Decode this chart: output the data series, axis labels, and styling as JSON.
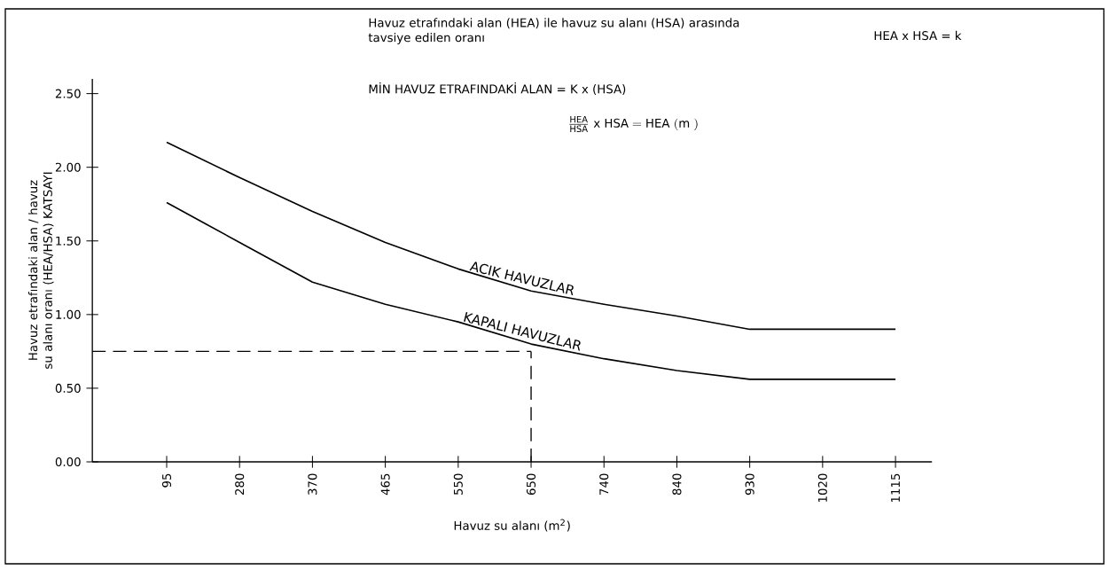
{
  "chart_data": {
    "type": "line",
    "categories": [
      "95",
      "280",
      "370",
      "465",
      "550",
      "650",
      "740",
      "840",
      "930",
      "1020",
      "1115"
    ],
    "xlabel": "Havuz su alanı (m$^{2}$)",
    "ylabel": "Havuz etrafındaki alan / havuz su alanı oranı (HEA/HSA) KATSAYI",
    "ylim": [
      0,
      2.6
    ],
    "yticks": [
      {
        "value": 0,
        "label": "0.00"
      },
      {
        "value": 0.5,
        "label": "0.50"
      },
      {
        "value": 1,
        "label": "1.00"
      },
      {
        "value": 1.5,
        "label": "1.50"
      },
      {
        "value": 2,
        "label": "2.00"
      },
      {
        "value": 2.5,
        "label": "2.50"
      }
    ],
    "series": [
      {
        "name": "ACIK HAVUZLAR",
        "color": "#000000",
        "values": [
          2.17,
          1.93,
          1.7,
          1.49,
          1.31,
          1.16,
          1.07,
          0.99,
          0.9,
          0.9,
          0.9
        ]
      },
      {
        "name": "KAPALI HAVUZLAR",
        "color": "#000000",
        "values": [
          1.76,
          1.49,
          1.22,
          1.07,
          0.95,
          0.8,
          0.7,
          0.62,
          0.56,
          0.56,
          0.56
        ]
      }
    ],
    "ref_lines": [
      {
        "axis": "y",
        "value": 0.75,
        "line_style": "dashed"
      },
      {
        "axis": "x",
        "value": "650",
        "line_style": "dashed"
      }
    ],
    "annotations": [
      "Havuz etrafındaki alan (HEA) ile havuz su alanı (HSA) arasında tavsiye edilen oranı",
      "HEA x HSA = k",
      "MİN HAVUZ ETRAFINDAKİ ALAN = K x (HSA)",
      "\\frac{\\mathrm{HEA}}{\\mathrm{HSA}}\\ \\mathrm{x}\\ \\mathrm{HSA}=\\mathrm{HEA}\\ (\\mathrm{m}\\ )"
    ],
    "grid": false,
    "marker": "none",
    "line_style": "solid"
  }
}
